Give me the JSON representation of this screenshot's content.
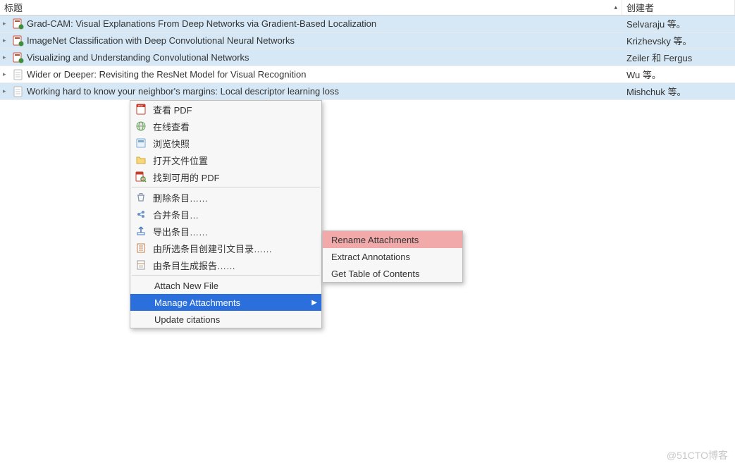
{
  "columns": {
    "title": "标题",
    "creator": "创建者"
  },
  "rows": [
    {
      "title": "Grad-CAM: Visual Explanations From Deep Networks via Gradient-Based Localization",
      "creator": "Selvaraju 等。",
      "selected": true,
      "icon": "pdf-linked"
    },
    {
      "title": "ImageNet Classification with Deep Convolutional Neural Networks",
      "creator": "Krizhevsky 等。",
      "selected": true,
      "icon": "pdf-linked"
    },
    {
      "title": "Visualizing and Understanding Convolutional Networks",
      "creator": "Zeiler 和 Fergus",
      "selected": true,
      "icon": "pdf-linked"
    },
    {
      "title": "Wider or Deeper: Revisiting the ResNet Model for Visual Recognition",
      "creator": "Wu 等。",
      "selected": false,
      "icon": "doc"
    },
    {
      "title": "Working hard to know your neighbor's margins: Local descriptor learning loss",
      "creator": "Mishchuk 等。",
      "selected": true,
      "icon": "doc"
    }
  ],
  "menu1": {
    "group1": [
      {
        "icon": "pdf",
        "label": "查看 PDF"
      },
      {
        "icon": "globe",
        "label": "在线查看"
      },
      {
        "icon": "snapshot",
        "label": "浏览快照"
      },
      {
        "icon": "folder",
        "label": "打开文件位置"
      },
      {
        "icon": "pdf-find",
        "label": "找到可用的 PDF"
      }
    ],
    "group2": [
      {
        "icon": "trash",
        "label": "删除条目……"
      },
      {
        "icon": "merge",
        "label": "合并条目…"
      },
      {
        "icon": "export",
        "label": "导出条目……"
      },
      {
        "icon": "biblio",
        "label": "由所选条目创建引文目录……"
      },
      {
        "icon": "report",
        "label": "由条目生成报告……"
      }
    ],
    "group3": [
      {
        "label": "Attach New File"
      },
      {
        "label": "Manage Attachments",
        "highlight": true,
        "submenu": true
      },
      {
        "label": "Update citations"
      }
    ]
  },
  "menu2": [
    {
      "label": "Rename Attachments",
      "highlight": true
    },
    {
      "label": "Extract Annotations"
    },
    {
      "label": "Get Table of Contents"
    }
  ],
  "watermark": "@51CTO博客",
  "colors": {
    "selected_row": "#d6e8f5",
    "menu_bg": "#f7f7f7",
    "menu_border": "#bfbfbf",
    "highlight_blue": "#2a6fdb",
    "highlight_pink": "#f2a9a9"
  }
}
